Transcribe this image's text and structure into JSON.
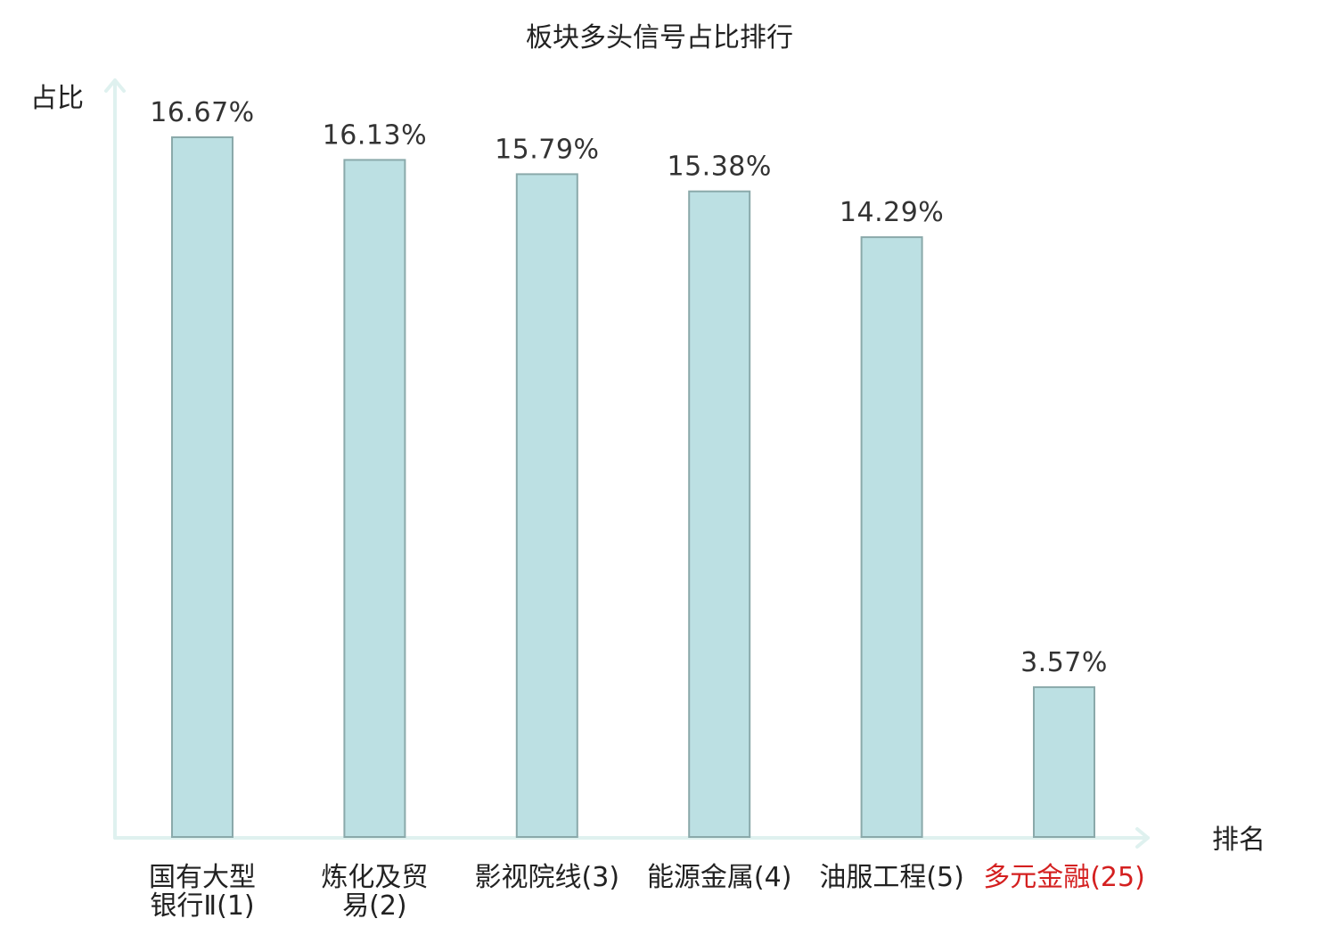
{
  "chart_data": {
    "type": "bar",
    "title": "板块多头信号占比排行",
    "ylabel": "占比",
    "xlabel": "排名",
    "categories": [
      [
        "国有大型",
        "银行Ⅱ(1)"
      ],
      [
        "炼化及贸",
        "易(2)"
      ],
      [
        "影视院线(3)"
      ],
      [
        "能源金属(4)"
      ],
      [
        "油服工程(5)"
      ],
      [
        "多元金融(25)"
      ]
    ],
    "values": [
      16.67,
      16.13,
      15.79,
      15.38,
      14.29,
      3.57
    ],
    "value_labels": [
      "16.67%",
      "16.13%",
      "15.79%",
      "15.38%",
      "14.29%",
      "3.57%"
    ],
    "highlight_index": 5,
    "ylim": [
      0,
      18
    ],
    "grid": false,
    "legend": "none",
    "colors": {
      "bar_fill": "#bce0e3",
      "bar_stroke": "#8aa9aa",
      "axis": "#dff1ef",
      "text": "#222222",
      "highlight": "#d42020"
    }
  }
}
